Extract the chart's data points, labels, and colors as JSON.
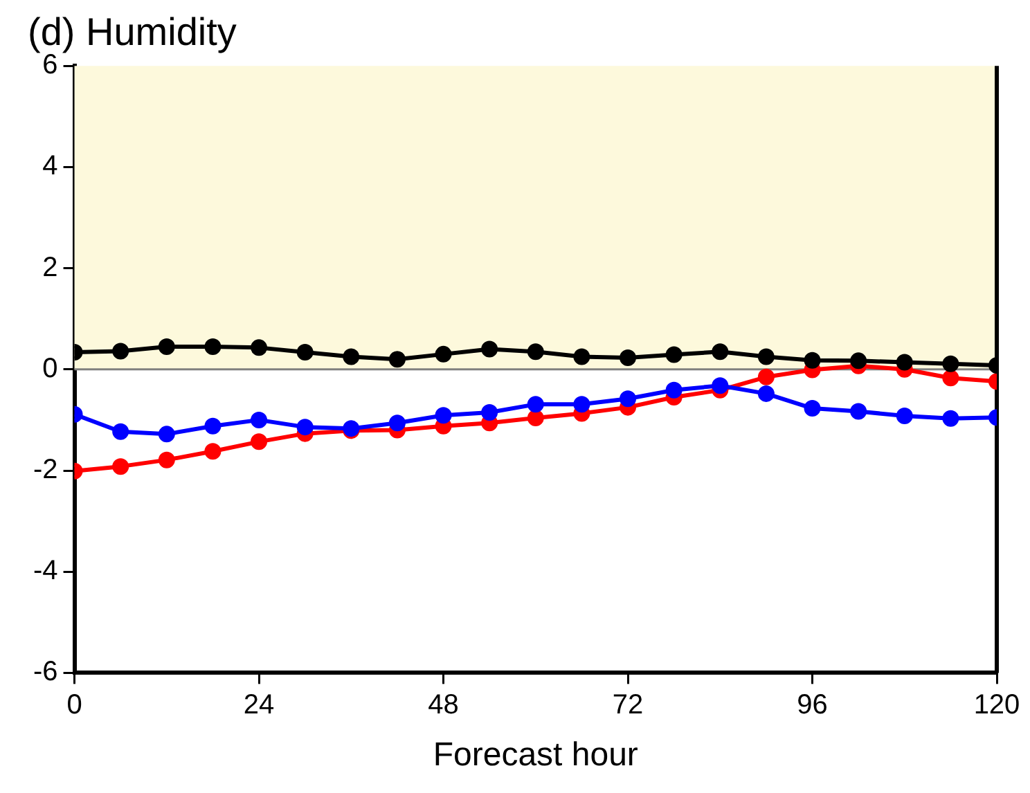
{
  "chart_data": {
    "type": "line",
    "title": "(d) Humidity",
    "xlabel": "Forecast hour",
    "x": [
      0,
      6,
      12,
      18,
      24,
      30,
      36,
      42,
      48,
      54,
      60,
      66,
      72,
      78,
      84,
      90,
      96,
      102,
      108,
      114,
      120
    ],
    "series": [
      {
        "color": "#000000",
        "values": [
          0.34,
          0.36,
          0.45,
          0.45,
          0.43,
          0.34,
          0.25,
          0.2,
          0.3,
          0.4,
          0.35,
          0.25,
          0.23,
          0.29,
          0.35,
          0.25,
          0.18,
          0.17,
          0.14,
          0.11,
          0.08
        ]
      },
      {
        "color": "#0000ff",
        "values": [
          -0.89,
          -1.23,
          -1.28,
          -1.12,
          -1.0,
          -1.14,
          -1.17,
          -1.06,
          -0.91,
          -0.85,
          -0.69,
          -0.69,
          -0.58,
          -0.41,
          -0.32,
          -0.48,
          -0.77,
          -0.83,
          -0.92,
          -0.97,
          -0.95
        ]
      },
      {
        "color": "#ff0000",
        "values": [
          -2.01,
          -1.92,
          -1.79,
          -1.62,
          -1.43,
          -1.27,
          -1.21,
          -1.2,
          -1.12,
          -1.06,
          -0.96,
          -0.87,
          -0.75,
          -0.55,
          -0.41,
          -0.15,
          -0.01,
          0.07,
          0.0,
          -0.17,
          -0.24
        ]
      }
    ],
    "xlim": [
      0,
      120
    ],
    "xticks": [
      0,
      24,
      48,
      72,
      96,
      120
    ],
    "ylim": [
      -6,
      6
    ],
    "yticks": [
      -6,
      -4,
      -2,
      0,
      2,
      4,
      6
    ],
    "bands": [
      {
        "axis": "y",
        "from": 0,
        "to": 6,
        "color": "#fdf9dc"
      }
    ],
    "ref_lines": [
      {
        "axis": "y",
        "value": 0,
        "color": "#808080"
      }
    ],
    "grid": false,
    "legend": false,
    "marker": "circle",
    "line_style": "solid"
  }
}
